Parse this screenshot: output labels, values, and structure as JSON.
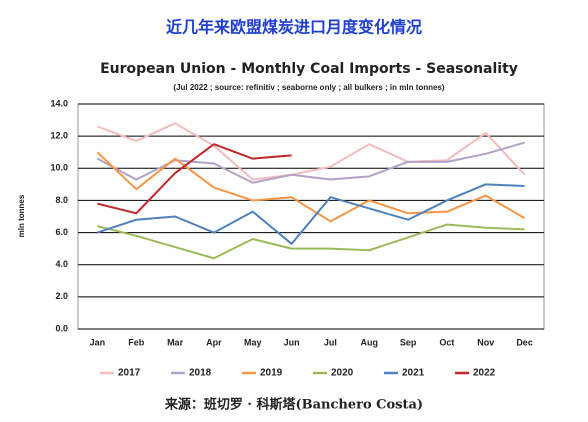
{
  "chart_data": {
    "type": "line",
    "heading": "近几年来欧盟煤炭进口月度变化情况",
    "title": "European Union - Monthly Coal Imports - Seasonality",
    "subtitle": "(Jul 2022 ; source: refinitiv ; seaborne only ; all bulkers ; in mln tonnes)",
    "y_label": "mln tonnes",
    "source": "来源：班切罗 · 科斯塔(Banchero Costa)",
    "categories": [
      "Jan",
      "Feb",
      "Mar",
      "Apr",
      "May",
      "Jun",
      "Jul",
      "Aug",
      "Sep",
      "Oct",
      "Nov",
      "Dec"
    ],
    "series": [
      {
        "name": "2017",
        "color": "#f2bcbc",
        "values": [
          12.6,
          11.7,
          12.8,
          11.4,
          9.3,
          9.6,
          10.1,
          11.5,
          10.4,
          10.5,
          12.2,
          9.6
        ]
      },
      {
        "name": "2018",
        "color": "#b3a2c7",
        "values": [
          10.6,
          9.3,
          10.5,
          10.3,
          9.1,
          9.6,
          9.3,
          9.5,
          10.4,
          10.4,
          10.9,
          11.6
        ]
      },
      {
        "name": "2019",
        "color": "#f79646",
        "values": [
          11.0,
          8.7,
          10.6,
          8.8,
          8.0,
          8.2,
          6.7,
          8.0,
          7.2,
          7.3,
          8.3,
          6.9
        ]
      },
      {
        "name": "2020",
        "color": "#9bbb59",
        "values": [
          6.4,
          5.8,
          5.1,
          4.4,
          5.6,
          5.0,
          5.0,
          4.9,
          5.7,
          6.5,
          6.3,
          6.2
        ]
      },
      {
        "name": "2021",
        "color": "#4f81bd",
        "values": [
          6.0,
          6.8,
          7.0,
          6.0,
          7.3,
          5.3,
          8.2,
          7.5,
          6.8,
          8.0,
          9.0,
          8.9
        ]
      },
      {
        "name": "2022",
        "color": "#c0282d",
        "values": [
          7.8,
          7.2,
          9.7,
          11.5,
          10.6,
          10.8,
          null,
          null,
          null,
          null,
          null,
          null
        ]
      }
    ],
    "ylim": [
      0,
      14
    ],
    "yticks": [
      {
        "value": 0,
        "label": "0.0"
      },
      {
        "value": 2,
        "label": "2.0"
      },
      {
        "value": 4,
        "label": "4.0"
      },
      {
        "value": 6,
        "label": "6.0"
      },
      {
        "value": 8,
        "label": "8.0"
      },
      {
        "value": 10,
        "label": "10.0"
      },
      {
        "value": 12,
        "label": "12.0"
      },
      {
        "value": 14,
        "label": "14.0"
      }
    ],
    "grid": true
  }
}
